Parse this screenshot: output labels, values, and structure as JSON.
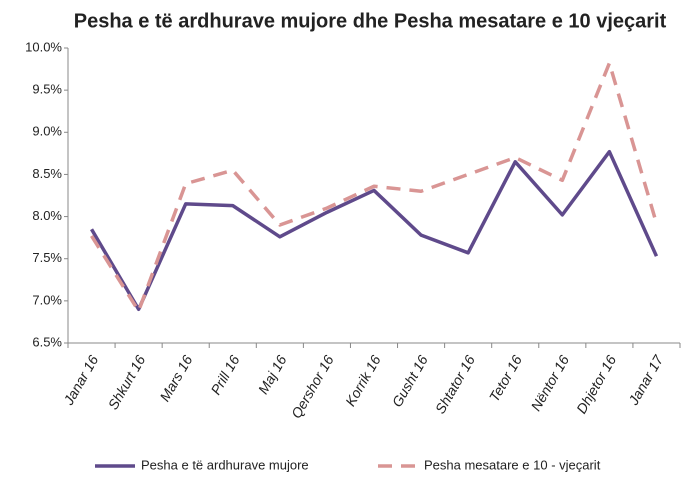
{
  "chart_data": {
    "type": "line",
    "title": "Pesha e të ardhurave mujore dhe Pesha mesatare e 10 vjeçarit",
    "categories": [
      "Janar 16",
      "Shkurt 16",
      "Mars 16",
      "Prill 16",
      "Maj 16",
      "Qershor 16",
      "Korrik 16",
      "Gusht 16",
      "Shtator 16",
      "Tetor 16",
      "Nëntor 16",
      "Dhjetor 16",
      "Janar 17"
    ],
    "series": [
      {
        "name": "Pesha e të ardhurave mujore",
        "color": "#5f4a8b",
        "dashed": false,
        "values": [
          7.85,
          6.9,
          8.15,
          8.13,
          7.76,
          8.05,
          8.31,
          7.78,
          7.57,
          8.65,
          8.02,
          8.77,
          7.53
        ]
      },
      {
        "name": "Pesha mesatare e 10 - vjeçarit",
        "color": "#d99594",
        "dashed": true,
        "values": [
          7.77,
          6.88,
          8.39,
          8.55,
          7.9,
          8.1,
          8.36,
          8.3,
          8.5,
          8.7,
          8.43,
          9.82,
          7.92
        ]
      }
    ],
    "ylim": [
      6.5,
      10.0
    ],
    "yticks": [
      {
        "value": 6.5,
        "label": "6.5%"
      },
      {
        "value": 7.0,
        "label": "7.0%"
      },
      {
        "value": 7.5,
        "label": "7.5%"
      },
      {
        "value": 8.0,
        "label": "8.0%"
      },
      {
        "value": 8.5,
        "label": "8.5%"
      },
      {
        "value": 9.0,
        "label": "9.0%"
      },
      {
        "value": 9.5,
        "label": "9.5%"
      },
      {
        "value": 10.0,
        "label": "10.0%"
      }
    ],
    "grid": false,
    "legend": "bottom"
  }
}
